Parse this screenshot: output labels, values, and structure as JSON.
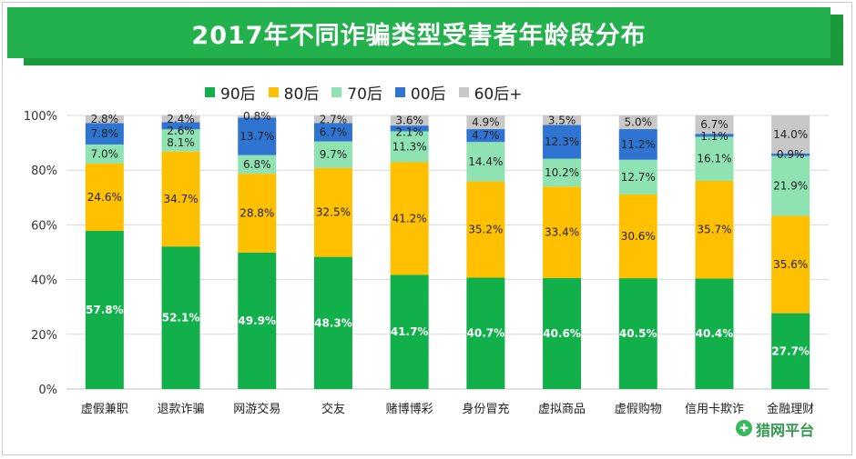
{
  "title": "2017年不同诈骗类型受害者年龄段分布",
  "watermark": {
    "text": "猎网平台",
    "icon": "shield-icon"
  },
  "chart_data": {
    "type": "bar",
    "stacked": true,
    "categories": [
      "虚假兼职",
      "退款诈骗",
      "网游交易",
      "交友",
      "赌博博彩",
      "身份冒充",
      "虚拟商品",
      "虚假购物",
      "信用卡欺诈",
      "金融理财"
    ],
    "yticks": [
      "0%",
      "20%",
      "40%",
      "60%",
      "80%",
      "100%"
    ],
    "ylim": [
      0,
      100
    ],
    "grid": true,
    "legend_position": "top",
    "series": [
      {
        "name": "90后",
        "color": "#12b04b",
        "text_color": "#ffffff",
        "values": [
          57.8,
          52.1,
          49.9,
          48.3,
          41.7,
          40.7,
          40.6,
          40.5,
          40.4,
          27.7
        ],
        "labels": [
          "57.8%",
          "52.1%",
          "49.9%",
          "48.3%",
          "41.7%",
          "40.7%",
          "40.6%",
          "40.5%",
          "40.4%",
          "27.7%"
        ]
      },
      {
        "name": "80后",
        "color": "#ffc000",
        "text_color": "#222222",
        "values": [
          24.6,
          34.7,
          28.8,
          32.5,
          41.2,
          35.2,
          33.4,
          30.6,
          35.7,
          35.6
        ],
        "labels": [
          "24.6%",
          "34.7%",
          "28.8%",
          "32.5%",
          "41.2%",
          "35.2%",
          "33.4%",
          "30.6%",
          "35.7%",
          "35.6%"
        ]
      },
      {
        "name": "70后",
        "color": "#8fe3b3",
        "text_color": "#222222",
        "values": [
          7.0,
          8.1,
          6.8,
          9.7,
          11.3,
          14.4,
          10.2,
          12.7,
          16.1,
          21.9
        ],
        "labels": [
          "7.0%",
          "8.1%",
          "6.8%",
          "9.7%",
          "11.3%",
          "14.4%",
          "10.2%",
          "12.7%",
          "16.1%",
          "21.9%"
        ]
      },
      {
        "name": "00后",
        "color": "#2f74d0",
        "text_color": "#222222",
        "values": [
          7.8,
          2.6,
          13.7,
          6.7,
          2.1,
          4.7,
          12.3,
          11.2,
          1.1,
          0.9
        ],
        "labels": [
          "7.8%",
          "2.6%",
          "13.7%",
          "6.7%",
          "2.1%",
          "4.7%",
          "12.3%",
          "11.2%",
          "1.1%",
          "0.9%"
        ]
      },
      {
        "name": "60后+",
        "color": "#c8c8c8",
        "text_color": "#222222",
        "values": [
          2.8,
          2.4,
          0.8,
          2.7,
          3.6,
          4.9,
          3.5,
          5.0,
          6.7,
          14.0
        ],
        "labels": [
          "2.8%",
          "2.4%",
          "0.8%",
          "2.7%",
          "3.6%",
          "4.9%",
          "3.5%",
          "5.0%",
          "6.7%",
          "14.0%"
        ]
      }
    ]
  }
}
